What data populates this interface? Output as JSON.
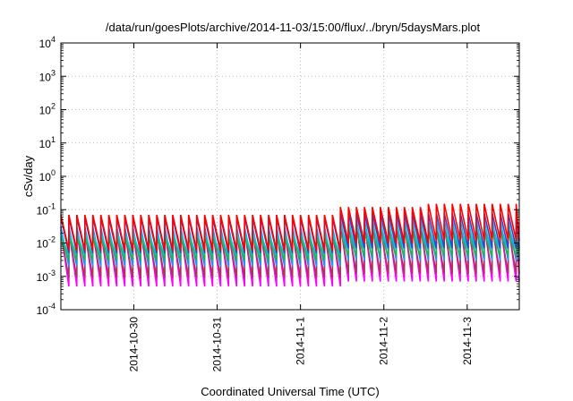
{
  "chart_data": {
    "type": "line",
    "title": "/data/run/goesPlots/archive/2014-11-03/15:00/flux/../bryn/5daysMars.plot",
    "xlabel": "Coordinated Universal Time (UTC)",
    "ylabel": "cSv/day",
    "yscale": "log",
    "ylim": [
      0.0001,
      10000
    ],
    "xlim": [
      "2014-10-29T03:00",
      "2014-11-03T15:00"
    ],
    "grid": true,
    "legend": "none",
    "x_ticks": [
      "2014-10-30",
      "2014-10-31",
      "2014-11-1",
      "2014-11-2",
      "2014-11-3"
    ],
    "y_ticks": [
      {
        "base": "10",
        "exp": "-4"
      },
      {
        "base": "10",
        "exp": "-3"
      },
      {
        "base": "10",
        "exp": "-2"
      },
      {
        "base": "10",
        "exp": "-1"
      },
      {
        "base": "10",
        "exp": "0"
      },
      {
        "base": "10",
        "exp": "1"
      },
      {
        "base": "10",
        "exp": "2"
      },
      {
        "base": "10",
        "exp": "3"
      },
      {
        "base": "10",
        "exp": "4"
      }
    ],
    "cycle_hours": 2.3,
    "series": [
      {
        "color": "#ff00ff",
        "peaks": [
          0.025,
          0.025,
          0.025,
          0.04,
          0.04
        ],
        "troughs": [
          0.0005,
          0.0005,
          0.0005,
          0.0007,
          0.0007
        ]
      },
      {
        "color": "#b03060",
        "peaks": [
          0.02,
          0.02,
          0.02,
          0.03,
          0.03
        ],
        "troughs": [
          0.0009,
          0.0009,
          0.0009,
          0.0012,
          0.0012
        ]
      },
      {
        "color": "#1e90ff",
        "peaks": [
          0.03,
          0.03,
          0.03,
          0.05,
          0.05
        ],
        "troughs": [
          0.002,
          0.002,
          0.002,
          0.003,
          0.003
        ]
      },
      {
        "color": "#00cccc",
        "peaks": [
          0.02,
          0.02,
          0.02,
          0.035,
          0.035
        ],
        "troughs": [
          0.004,
          0.004,
          0.004,
          0.006,
          0.006
        ]
      },
      {
        "color": "#20b060",
        "peaks": [
          0.015,
          0.015,
          0.015,
          0.02,
          0.02
        ],
        "troughs": [
          0.003,
          0.003,
          0.003,
          0.004,
          0.004
        ]
      },
      {
        "color": "#4040c0",
        "peaks": [
          0.06,
          0.06,
          0.06,
          0.08,
          0.08
        ],
        "troughs": [
          0.005,
          0.005,
          0.005,
          0.007,
          0.007
        ]
      },
      {
        "color": "#ff0000",
        "peaks": [
          0.07,
          0.07,
          0.07,
          0.12,
          0.15
        ],
        "troughs": [
          0.006,
          0.006,
          0.006,
          0.01,
          0.012
        ]
      }
    ]
  }
}
